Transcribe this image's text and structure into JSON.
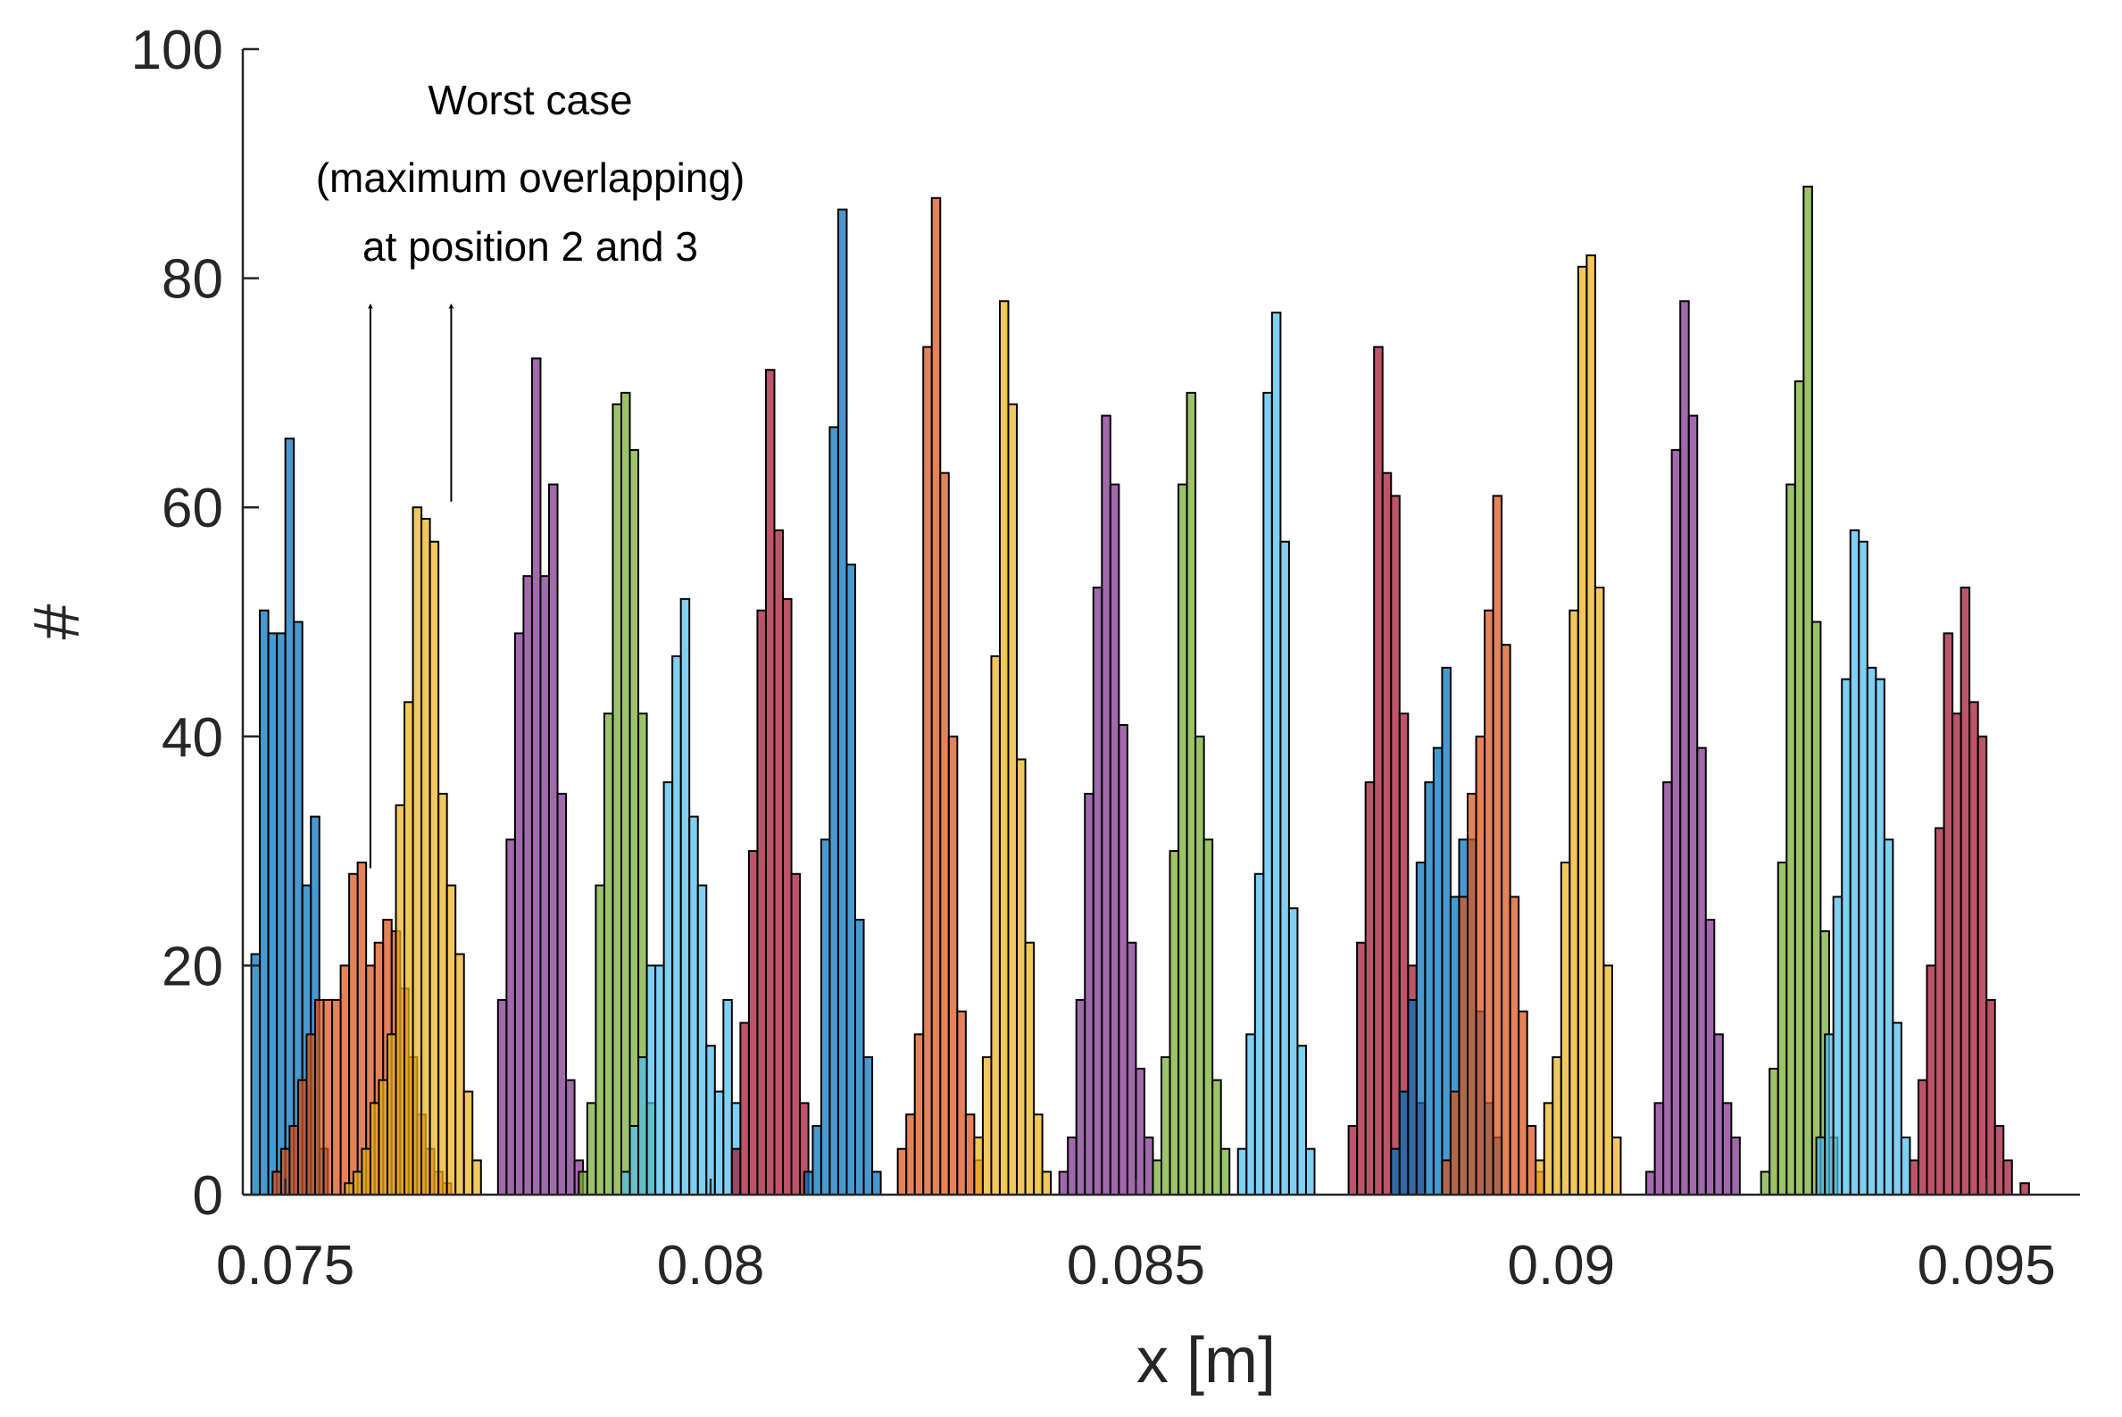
{
  "chart_data": {
    "type": "bar",
    "subtype": "overlapping-histograms",
    "title": "",
    "xlabel": "x [m]",
    "ylabel": "#",
    "xlim": [
      0.0745,
      0.0961
    ],
    "ylim": [
      0,
      100
    ],
    "xticks": [
      0.075,
      0.08,
      0.085,
      0.09,
      0.095
    ],
    "xtick_labels": [
      "0.075",
      "0.08",
      "0.085",
      "0.09",
      "0.095"
    ],
    "yticks": [
      0,
      20,
      40,
      60,
      80,
      100
    ],
    "ytick_labels": [
      "0",
      "20",
      "40",
      "60",
      "80",
      "100"
    ],
    "bin_width": 0.0001,
    "grid": false,
    "legend": "none",
    "colors": [
      "#0072BD",
      "#D95319",
      "#EDB120",
      "#7E2F8E",
      "#77AC30",
      "#4DBEEE",
      "#A2142F"
    ],
    "annotation": {
      "lines": [
        "Worst case",
        "(maximum overlapping)",
        "at position 2 and 3"
      ],
      "arrows": [
        {
          "x": 0.076,
          "y_from": 28.5,
          "y_to": 78
        },
        {
          "x": 0.07695,
          "y_from": 60.5,
          "y_to": 78
        }
      ]
    },
    "series": [
      {
        "color_index": 0,
        "x_start": 0.0746,
        "values": [
          21,
          51,
          49,
          49,
          66,
          50,
          27,
          33,
          4
        ]
      },
      {
        "color_index": 1,
        "x_start": 0.07485,
        "values": [
          2,
          4,
          6,
          10,
          14,
          17,
          17,
          17,
          20,
          28,
          29,
          20,
          22,
          24,
          23,
          18,
          12,
          7,
          4,
          2,
          1
        ]
      },
      {
        "color_index": 2,
        "x_start": 0.0757,
        "values": [
          1,
          2,
          4,
          8,
          10,
          14,
          34,
          43,
          60,
          59,
          57,
          35,
          27,
          21,
          9,
          3
        ]
      },
      {
        "color_index": 3,
        "x_start": 0.0775,
        "values": [
          17,
          31,
          49,
          54,
          73,
          54,
          62,
          35,
          10,
          3
        ]
      },
      {
        "color_index": 4,
        "x_start": 0.07845,
        "values": [
          2,
          8,
          27,
          42,
          69,
          70,
          65,
          42,
          8
        ]
      },
      {
        "color_index": 5,
        "x_start": 0.07895,
        "values": [
          2,
          6,
          12,
          20,
          20,
          36,
          47,
          52,
          33,
          27,
          13,
          9,
          17,
          8
        ]
      },
      {
        "color_index": 6,
        "x_start": 0.08025,
        "values": [
          4,
          15,
          30,
          51,
          72,
          58,
          52,
          28,
          8
        ]
      },
      {
        "color_index": 0,
        "x_start": 0.0811,
        "values": [
          2,
          6,
          31,
          67,
          86,
          55,
          24,
          12,
          2
        ]
      },
      {
        "color_index": 1,
        "x_start": 0.0822,
        "values": [
          4,
          7,
          14,
          74,
          87,
          63,
          40,
          16,
          7,
          3
        ]
      },
      {
        "color_index": 2,
        "x_start": 0.0831,
        "values": [
          5,
          12,
          47,
          78,
          69,
          38,
          22,
          7,
          2
        ]
      },
      {
        "color_index": 3,
        "x_start": 0.0841,
        "values": [
          2,
          5,
          17,
          35,
          53,
          68,
          62,
          41,
          22,
          11,
          5
        ]
      },
      {
        "color_index": 4,
        "x_start": 0.0852,
        "values": [
          3,
          12,
          30,
          62,
          70,
          40,
          31,
          10,
          4
        ]
      },
      {
        "color_index": 5,
        "x_start": 0.0862,
        "values": [
          4,
          14,
          28,
          70,
          77,
          57,
          25,
          13,
          4
        ]
      },
      {
        "color_index": 6,
        "x_start": 0.0875,
        "values": [
          6,
          22,
          36,
          74,
          63,
          61,
          42,
          20,
          8
        ]
      },
      {
        "color_index": 0,
        "x_start": 0.088,
        "values": [
          4,
          9,
          17,
          29,
          36,
          39,
          46,
          26,
          31,
          31,
          16,
          8,
          5
        ]
      },
      {
        "color_index": 1,
        "x_start": 0.0886,
        "values": [
          3,
          9,
          26,
          35,
          40,
          51,
          61,
          48,
          26,
          16,
          6,
          2
        ]
      },
      {
        "color_index": 2,
        "x_start": 0.0897,
        "values": [
          3,
          8,
          12,
          29,
          51,
          81,
          82,
          53,
          20,
          5
        ]
      },
      {
        "color_index": 3,
        "x_start": 0.091,
        "values": [
          2,
          8,
          36,
          65,
          78,
          68,
          39,
          24,
          14,
          8,
          5
        ]
      },
      {
        "color_index": 4,
        "x_start": 0.09235,
        "values": [
          2,
          11,
          29,
          62,
          71,
          88,
          50,
          23,
          5
        ]
      },
      {
        "color_index": 5,
        "x_start": 0.093,
        "values": [
          5,
          14,
          26,
          45,
          58,
          57,
          46,
          45,
          31,
          15,
          5
        ]
      },
      {
        "color_index": 6,
        "x_start": 0.0941,
        "values": [
          3,
          10,
          20,
          32,
          49,
          42,
          53,
          43,
          40,
          17,
          6,
          3,
          0,
          1
        ]
      }
    ]
  }
}
